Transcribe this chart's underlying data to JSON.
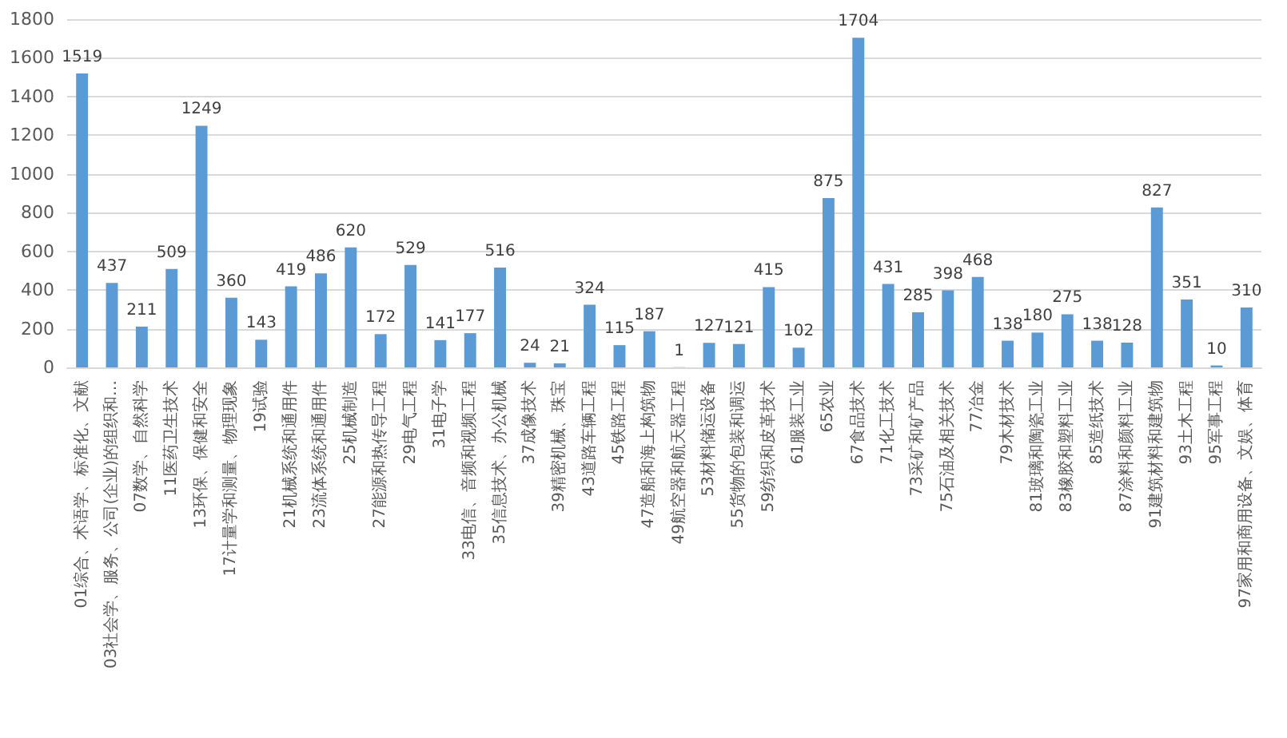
{
  "chart_data": {
    "type": "bar",
    "categories": [
      "01综合、术语学、标准化、文献",
      "03社会学、服务、公司(企业)的组织和…",
      "07数学、自然科学",
      "11医药卫生技术",
      "13环保、保健和安全",
      "17计量学和测量、物理现象",
      "19试验",
      "21机械系统和通用件",
      "23流体系统和通用件",
      "25机械制造",
      "27能源和热传导工程",
      "29电气工程",
      "31电子学",
      "33电信、音频和视频工程",
      "35信息技术、办公机械",
      "37成像技术",
      "39精密机械、珠宝",
      "43道路车辆工程",
      "45铁路工程",
      "47造船和海上构筑物",
      "49航空器和航天器工程",
      "53材料储运设备",
      "55货物的包装和调运",
      "59纺织和皮革技术",
      "61服装工业",
      "65农业",
      "67食品技术",
      "71化工技术",
      "73采矿和矿产品",
      "75石油及相关技术",
      "77冶金",
      "79木材技术",
      "81玻璃和陶瓷工业",
      "83橡胶和塑料工业",
      "85造纸技术",
      "87涂料和颜料工业",
      "91建筑材料和建筑物",
      "93土木工程",
      "95军事工程",
      "97家用和商用设备、文娱、体育"
    ],
    "values": [
      1519,
      437,
      211,
      509,
      1249,
      360,
      143,
      419,
      486,
      620,
      172,
      529,
      141,
      177,
      516,
      24,
      21,
      324,
      115,
      187,
      1,
      127,
      121,
      415,
      102,
      875,
      1704,
      431,
      285,
      398,
      468,
      138,
      180,
      275,
      138,
      128,
      827,
      351,
      10,
      310
    ],
    "color": "#5b9bd5",
    "ylim": [
      0,
      1800
    ],
    "yticks": [
      0,
      200,
      400,
      600,
      800,
      1000,
      1200,
      1400,
      1600,
      1800
    ],
    "grid": "y",
    "data_labels": true
  }
}
